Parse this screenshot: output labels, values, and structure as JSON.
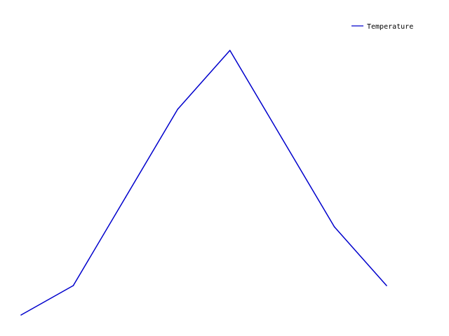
{
  "chart_data": {
    "type": "line",
    "title": "",
    "xlabel": "",
    "ylabel": "",
    "grid": false,
    "legend_position": "top-right",
    "x": [
      1,
      2,
      3,
      4,
      5,
      6,
      7,
      8
    ],
    "xlim": [
      1,
      8
    ],
    "ylim": [
      10,
      20
    ],
    "series": [
      {
        "name": "Temperature",
        "color": "#0000cc",
        "values": [
          10,
          11,
          14,
          17,
          19,
          16,
          13,
          11
        ]
      }
    ]
  }
}
